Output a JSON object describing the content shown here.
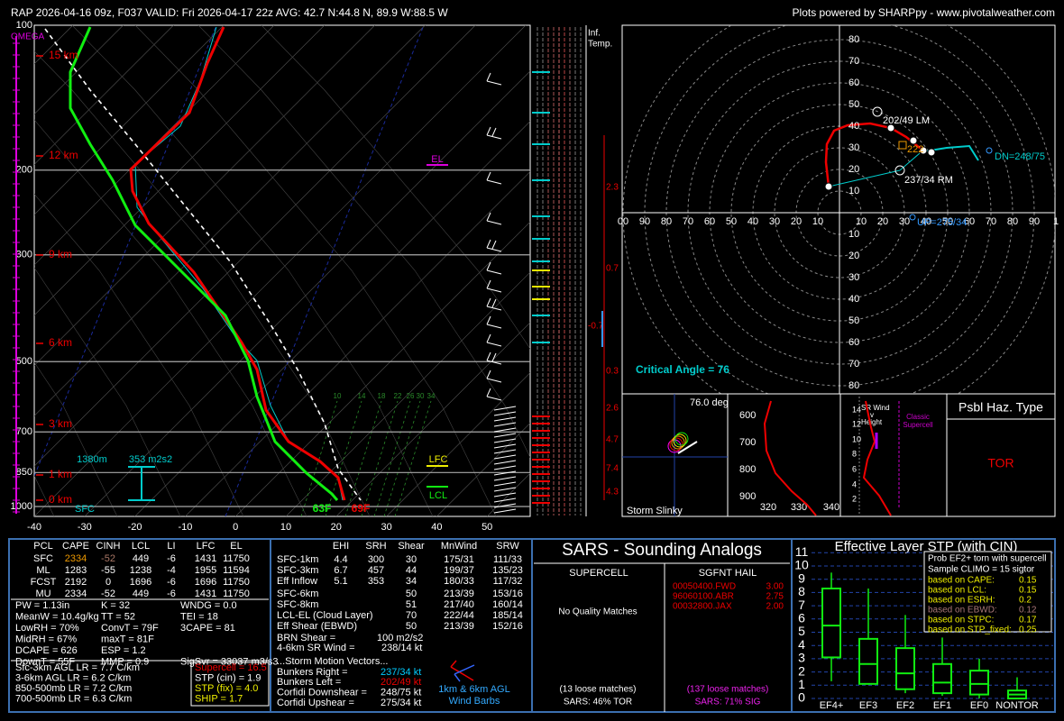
{
  "header": {
    "title": "RAP 2026-04-16 09z, F037  VALID: Fri 2026-04-17 22z  AVG: 42.7 N:44.8 N, 89.9 W:88.5 W",
    "credit": "Plots powered by SHARPpy - www.pivotalweather.com"
  },
  "skewt": {
    "pressure_labels": [
      "100",
      "200",
      "300",
      "500",
      "700",
      "850",
      "1000"
    ],
    "temperature_labels": [
      "-40",
      "-30",
      "-20",
      "-10",
      "0",
      "10",
      "20",
      "30",
      "40",
      "50"
    ],
    "height_labels": [
      "15 km",
      "12 km",
      "9 km",
      "6 km",
      "3 km",
      "1 km",
      "0 km"
    ],
    "omega_label": "OMEGA",
    "el_label": "EL",
    "lfc_label": "LFC",
    "lcl_label": "LCL",
    "surface_temperature": "69F",
    "surface_dewpoint": "63F",
    "sfc_label": "SFC",
    "effective_inflow_depth": "1380m",
    "effective_srh": "353 m2s2",
    "mixing_ratio_labels": [
      "10",
      "14",
      "18",
      "22",
      "26",
      "30",
      "34"
    ]
  },
  "inferred_temp": {
    "title": [
      "Inf.",
      "Temp."
    ],
    "labels": [
      "2.3",
      "0.7",
      "-0.7",
      "0.3",
      "2.6",
      "4.7",
      "7.4",
      "4.3"
    ]
  },
  "hodograph": {
    "upper_ring_labels": [
      "80",
      "70",
      "60",
      "50",
      "40",
      "30",
      "20",
      "10"
    ],
    "axis_labels": [
      "00",
      "90",
      "80",
      "70",
      "60",
      "50",
      "40",
      "30",
      "20",
      "10",
      "10",
      "20",
      "30",
      "40",
      "50",
      "60",
      "70",
      "80",
      "90",
      "1"
    ],
    "lower_ring_labels": [
      "10",
      "20",
      "30",
      "40",
      "50",
      "60",
      "70",
      "80"
    ],
    "left_mover": "202/49 LM",
    "right_mover": "237/34 RM",
    "downshear": "DN=248/75",
    "upshear": "UP=275/34",
    "mean_wind": "222",
    "critical_angle": "Critical Angle = 76"
  },
  "storm_slinky": {
    "angle": "76.0 deg",
    "title": "Storm Slinky"
  },
  "theta_panel": {
    "pressure_labels": [
      "600",
      "700",
      "800",
      "900"
    ],
    "theta_labels": [
      "320",
      "330",
      "340"
    ]
  },
  "sr_wind_panel": {
    "height_labels": [
      "14",
      "12",
      "10",
      "8",
      "6",
      "4",
      "2"
    ],
    "title": [
      "SR Wind",
      "v",
      "Height"
    ],
    "reference": [
      "Classic",
      "Supercell"
    ]
  },
  "hazard": {
    "title": "Psbl Haz. Type",
    "type": "TOR"
  },
  "thermo": {
    "headers": [
      "PCL",
      "CAPE",
      "CINH",
      "LCL",
      "LI",
      "LFC",
      "EL"
    ],
    "rows": [
      [
        "SFC",
        "2334",
        "-52",
        "449",
        "-6",
        "1431",
        "11750"
      ],
      [
        "ML",
        "1283",
        "-55",
        "1238",
        "-4",
        "1955",
        "11594"
      ],
      [
        "FCST",
        "2192",
        "0",
        "1696",
        "-6",
        "1696",
        "11750"
      ],
      [
        "MU",
        "2334",
        "-52",
        "449",
        "-6",
        "1431",
        "11750"
      ]
    ],
    "indices": [
      [
        "PW = 1.13in",
        "K = 32",
        "WNDG = 0.0"
      ],
      [
        "MeanW = 10.4g/kg",
        "TT = 52",
        "TEI = 18"
      ],
      [
        "LowRH = 70%",
        "ConvT = 79F",
        "3CAPE = 81"
      ],
      [
        "MidRH = 67%",
        "maxT = 81F"
      ],
      [
        "DCAPE = 626",
        "ESP = 1.2"
      ],
      [
        "DownT = 55F",
        "MMP = 0.9",
        "SigSvr = 33037 m3/s3"
      ]
    ],
    "lapse_rates": [
      "Sfc-3km AGL LR = 7.7 C/km",
      "3-6km AGL LR = 6.2 C/km",
      "850-500mb LR = 7.2 C/km",
      "700-500mb LR = 6.3 C/km"
    ],
    "parameters": [
      "Supercell = 16.5",
      "STP (cin) = 1.9",
      "STP (fix) = 4.0",
      "SHIP = 1.7"
    ]
  },
  "kinematics": {
    "headers": [
      "EHI",
      "SRH",
      "Shear",
      "MnWind",
      "SRW"
    ],
    "layers": [
      [
        "SFC-1km",
        "4.4",
        "300",
        "30",
        "175/31",
        "111/33"
      ],
      [
        "SFC-3km",
        "6.7",
        "457",
        "44",
        "199/37",
        "135/23"
      ],
      [
        "Eff Inflow",
        "5.1",
        "353",
        "34",
        "180/33",
        "117/32"
      ]
    ],
    "deep_layers": [
      [
        "SFC-6km",
        "50",
        "213/39",
        "153/16"
      ],
      [
        "SFC-8km",
        "51",
        "217/40",
        "160/14"
      ],
      [
        "LCL-EL (Cloud Layer)",
        "70",
        "222/44",
        "185/14"
      ],
      [
        "Eff Shear (EBWD)",
        "50",
        "213/39",
        "152/16"
      ]
    ],
    "brn_shear": [
      "BRN Shear =",
      "100 m2/s2"
    ],
    "sr_wind_4_6km": [
      "4-6km SR Wind =",
      "238/14 kt"
    ],
    "storm_motion_title": "...Storm Motion Vectors...",
    "storm_motion": [
      [
        "Bunkers Right =",
        "237/34 kt"
      ],
      [
        "Bunkers Left =",
        "202/49 kt"
      ],
      [
        "Corfidi Downshear =",
        "248/75 kt"
      ],
      [
        "Corfidi Upshear =",
        "275/34 kt"
      ]
    ],
    "barb_legend": [
      "1km & 6km AGL",
      "Wind Barbs"
    ]
  },
  "sars": {
    "title": "SARS - Sounding Analogs",
    "supercell_title": "SUPERCELL",
    "hail_title": "SGFNT HAIL",
    "supercell_matches": "No Quality Matches",
    "hail_matches": [
      [
        "00050400.FWD",
        "3.00"
      ],
      [
        "96060100.ABR",
        "2.75"
      ],
      [
        "00032800.JAX",
        "2.00"
      ]
    ],
    "supercell_loose": "(13 loose matches)",
    "supercell_result": "SARS: 46% TOR",
    "hail_loose": "(137 loose matches)",
    "hail_result": "SARS: 71% SIG"
  },
  "stp": {
    "title": "Effective Layer STP (with CIN)",
    "yticks": [
      "0",
      "1",
      "2",
      "3",
      "4",
      "5",
      "6",
      "7",
      "8",
      "9",
      "10",
      "11"
    ],
    "categories": [
      "EF4+",
      "EF3",
      "EF2",
      "EF1",
      "EF0",
      "NONTOR"
    ],
    "box_title": [
      "Prob EF2+ torn with supercell",
      "Sample CLIMO = 15 sigtor"
    ],
    "probabilities": [
      [
        "based on CAPE:",
        "0.15"
      ],
      [
        "based on LCL:",
        "0.15"
      ],
      [
        "based on ESRH:",
        "0.2"
      ],
      [
        "based on EBWD:",
        "0.12"
      ],
      [
        "based on STPC:",
        "0.17"
      ],
      [
        "based on STP_fixed:",
        "0.25"
      ]
    ]
  }
}
